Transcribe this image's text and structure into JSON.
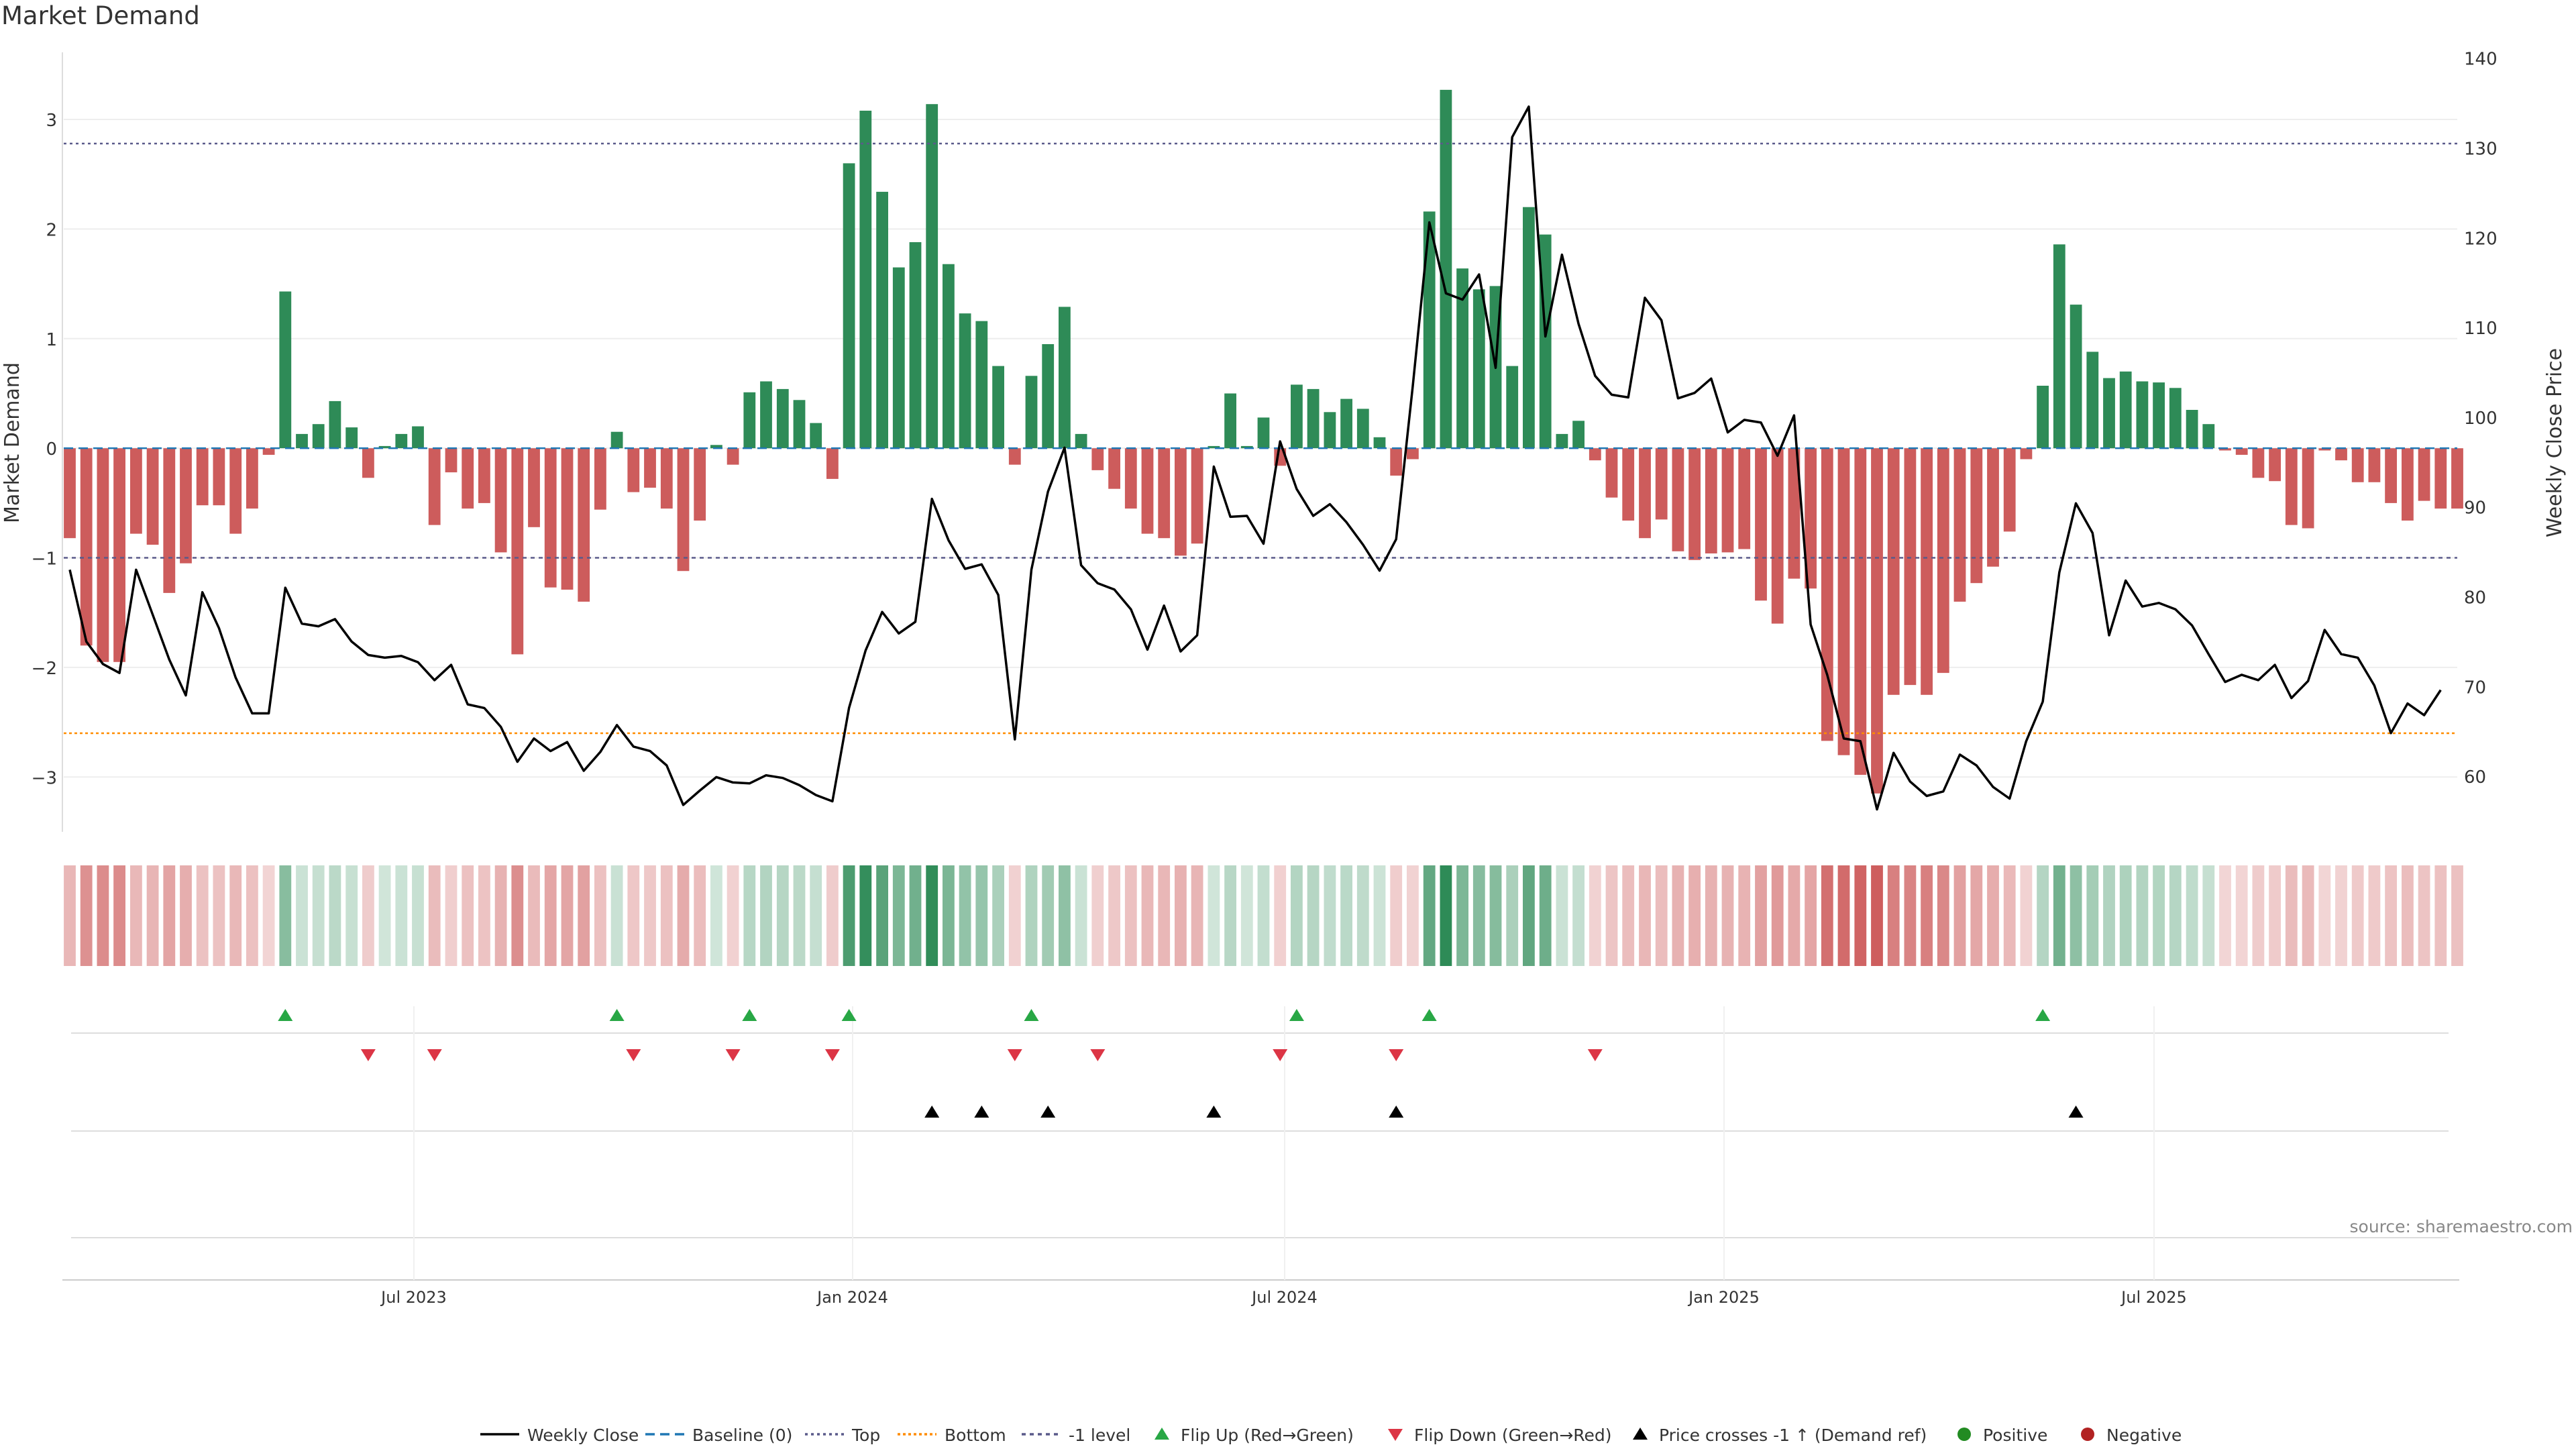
{
  "chart_data": {
    "type": "bar",
    "title": "Market Demand",
    "source": "source: sharemaestro.com",
    "y_left": {
      "label": "Market Demand",
      "lim": [
        -3.5,
        3.6
      ],
      "ticks": [
        3,
        2,
        1,
        0,
        -1,
        -2,
        -3
      ]
    },
    "y_right": {
      "label": "Weekly Close Price",
      "lim": [
        53.8,
        140.5
      ],
      "ticks": [
        140,
        130,
        120,
        110,
        100,
        90,
        80,
        70,
        60
      ]
    },
    "x_ticks": [
      "Jul 2023",
      "Jan 2024",
      "Jul 2024",
      "Jan 2025",
      "Jul 2025"
    ],
    "reference_lines": {
      "baseline": 0,
      "top": 2.78,
      "bottom": -2.6,
      "minus_one": -1
    },
    "demand": [
      -0.82,
      -1.8,
      -1.95,
      -1.95,
      -0.78,
      -0.88,
      -1.32,
      -1.05,
      -0.52,
      -0.52,
      -0.78,
      -0.55,
      -0.06,
      1.43,
      0.13,
      0.22,
      0.43,
      0.19,
      -0.27,
      0.02,
      0.13,
      0.2,
      -0.7,
      -0.22,
      -0.55,
      -0.5,
      -0.95,
      -1.88,
      -0.72,
      -1.27,
      -1.29,
      -1.4,
      -0.56,
      0.15,
      -0.4,
      -0.36,
      -0.55,
      -1.12,
      -0.66,
      0.03,
      -0.15,
      0.51,
      0.61,
      0.54,
      0.44,
      0.23,
      -0.28,
      2.6,
      3.08,
      2.34,
      1.65,
      1.88,
      3.14,
      1.68,
      1.23,
      1.16,
      0.75,
      -0.15,
      0.66,
      0.95,
      1.29,
      0.13,
      -0.2,
      -0.37,
      -0.55,
      -0.78,
      -0.82,
      -0.98,
      -0.87,
      0.02,
      0.5,
      0.02,
      0.28,
      -0.16,
      0.58,
      0.54,
      0.33,
      0.45,
      0.36,
      0.1,
      -0.25,
      -0.1,
      2.16,
      3.27,
      1.64,
      1.45,
      1.48,
      0.75,
      2.2,
      1.95,
      0.13,
      0.25,
      -0.11,
      -0.45,
      -0.66,
      -0.82,
      -0.65,
      -0.94,
      -1.02,
      -0.96,
      -0.95,
      -0.92,
      -1.39,
      -1.6,
      -1.19,
      -1.28,
      -2.67,
      -2.8,
      -2.98,
      -3.15,
      -2.25,
      -2.16,
      -2.25,
      -2.05,
      -1.4,
      -1.23,
      -1.08,
      -0.76,
      -0.1,
      0.57,
      1.86,
      1.31,
      0.88,
      0.64,
      0.7,
      0.61,
      0.6,
      0.55,
      0.35,
      0.22,
      -0.02,
      -0.06,
      -0.27,
      -0.3,
      -0.7,
      -0.73,
      -0.02,
      -0.11,
      -0.31,
      -0.31,
      -0.5,
      -0.66,
      -0.48,
      -0.55,
      -0.55
    ],
    "weekly_close": [
      83,
      75,
      72.5,
      71.5,
      83,
      78,
      73,
      69,
      80.5,
      76.5,
      71,
      67,
      67,
      81,
      77,
      76.7,
      77.5,
      75,
      73.5,
      73.2,
      73.4,
      72.7,
      70.7,
      72.4,
      68,
      67.6,
      65.5,
      61.6,
      64.2,
      62.8,
      63.8,
      60.6,
      62.7,
      65.7,
      63.3,
      62.8,
      61.2,
      56.8,
      58.4,
      59.9,
      59.3,
      59.2,
      60.1,
      59.8,
      59,
      57.9,
      57.2,
      67.6,
      74,
      78.3,
      75.9,
      77.2,
      90.9,
      86.3,
      83.1,
      83.6,
      80.2,
      64.1,
      83,
      91.7,
      96.6,
      83.5,
      81.5,
      80.8,
      78.6,
      74.1,
      79,
      73.9,
      75.7,
      94.5,
      88.9,
      89,
      85.9,
      97.3,
      92,
      89,
      90.3,
      88.3,
      85.8,
      82.9,
      86.4,
      103.4,
      121.7,
      113.8,
      113.1,
      115.9,
      105.5,
      131.2,
      134.6,
      109,
      118.1,
      110.4,
      104.6,
      102.5,
      102.2,
      113.3,
      110.8,
      102.1,
      102.7,
      104.3,
      98.3,
      99.7,
      99.4,
      95.7,
      100.2,
      76.9,
      71.3,
      64.2,
      63.9,
      56.3,
      62.6,
      59.4,
      57.8,
      58.3,
      62.4,
      61.2,
      58.8,
      57.5,
      63.9,
      68.3,
      82.7,
      90.4,
      87.1,
      75.7,
      81.8,
      78.9,
      79.3,
      78.6,
      76.8,
      73.6,
      70.5,
      71.3,
      70.7,
      72.4,
      68.7,
      70.6,
      76.3,
      73.6,
      73.2,
      70.1,
      64.8,
      68.1,
      66.8,
      69.6
    ],
    "legend": [
      "Weekly Close",
      "Baseline (0)",
      "Top",
      "Bottom",
      "-1 level",
      "Flip Up (Red→Green)",
      "Flip Down (Green→Red)",
      "Price crosses -1 ↑ (Demand ref)",
      "Positive",
      "Negative"
    ],
    "colors": {
      "positive": "#2e8b57",
      "negative": "#cd5c5c",
      "price": "#000000",
      "baseline": "#1f77b4",
      "top": "#5a5a8a",
      "bottom": "#ff8c00",
      "minus_one": "#5a5a8a",
      "flip_up": "#28a745",
      "flip_down": "#dc3545",
      "cross": "#000000",
      "legend_positive": "#228b22",
      "legend_negative": "#b22222"
    }
  }
}
